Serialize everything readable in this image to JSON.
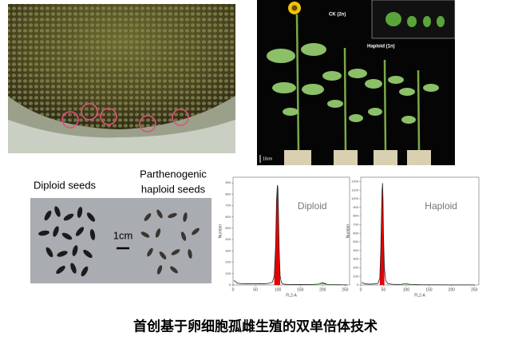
{
  "photo_labels": {
    "ck": "CK (2n)",
    "haploid": "Haploid (1n)",
    "scale_plants": "10cm",
    "diploid_seeds": "Diploid seeds",
    "haploid_seeds": [
      "Parthenogenic",
      "haploid seeds"
    ],
    "scale_seeds": "1cm"
  },
  "caption": "首创基于卵细胞孤雌生殖的双单倍体技术",
  "chart_data": [
    {
      "type": "line",
      "title": "Diploid",
      "xlabel": "FL2-A",
      "ylabel": "Number",
      "xlim": [
        0,
        260
      ],
      "xticks": [
        0,
        50,
        100,
        150,
        200,
        250
      ],
      "ylim": [
        0,
        950
      ],
      "yticks": [
        0,
        100,
        200,
        300,
        400,
        500,
        600,
        700,
        800,
        900
      ],
      "x": [
        2,
        10,
        20,
        30,
        40,
        50,
        60,
        70,
        80,
        88,
        92,
        95,
        97,
        99,
        100,
        101,
        103,
        105,
        108,
        112,
        120,
        140,
        160,
        180,
        190,
        195,
        200,
        205,
        210,
        220,
        240,
        255
      ],
      "fill_color": "#e60000",
      "series": [
        {
          "color": "#222222",
          "values": [
            40,
            15,
            12,
            10,
            10,
            10,
            12,
            10,
            15,
            25,
            80,
            350,
            750,
            880,
            860,
            700,
            300,
            80,
            20,
            8,
            5,
            4,
            4,
            5,
            8,
            12,
            15,
            10,
            5,
            3,
            2,
            1
          ]
        },
        {
          "color": "#2e8b2e",
          "values": [
            null,
            null,
            null,
            null,
            null,
            null,
            null,
            null,
            null,
            null,
            null,
            null,
            null,
            null,
            null,
            null,
            null,
            null,
            null,
            null,
            null,
            null,
            null,
            2,
            8,
            15,
            22,
            15,
            6,
            2,
            null,
            null
          ]
        }
      ]
    },
    {
      "type": "line",
      "title": "Haploid",
      "xlabel": "FL2-A",
      "ylabel": "Number",
      "xlim": [
        0,
        260
      ],
      "xticks": [
        0,
        50,
        100,
        150,
        200,
        250
      ],
      "ylim": [
        0,
        1250
      ],
      "yticks": [
        0,
        100,
        200,
        300,
        400,
        500,
        600,
        700,
        800,
        900,
        1000,
        1100,
        1200
      ],
      "x": [
        2,
        10,
        20,
        30,
        38,
        42,
        44,
        46,
        47,
        48,
        49,
        50,
        52,
        55,
        60,
        70,
        80,
        90,
        95,
        100,
        105,
        110,
        130,
        160,
        200,
        250
      ],
      "fill_color": "#e60000",
      "series": [
        {
          "color": "#222222",
          "values": [
            30,
            12,
            10,
            12,
            20,
            80,
            400,
            900,
            1100,
            1180,
            1000,
            600,
            200,
            50,
            15,
            8,
            6,
            8,
            12,
            14,
            10,
            6,
            3,
            2,
            1,
            1
          ]
        },
        {
          "color": "#2e8b2e",
          "values": [
            null,
            null,
            null,
            null,
            null,
            null,
            null,
            null,
            null,
            null,
            null,
            null,
            null,
            null,
            null,
            null,
            null,
            5,
            12,
            15,
            10,
            4,
            null,
            null,
            null,
            null
          ]
        }
      ]
    }
  ]
}
